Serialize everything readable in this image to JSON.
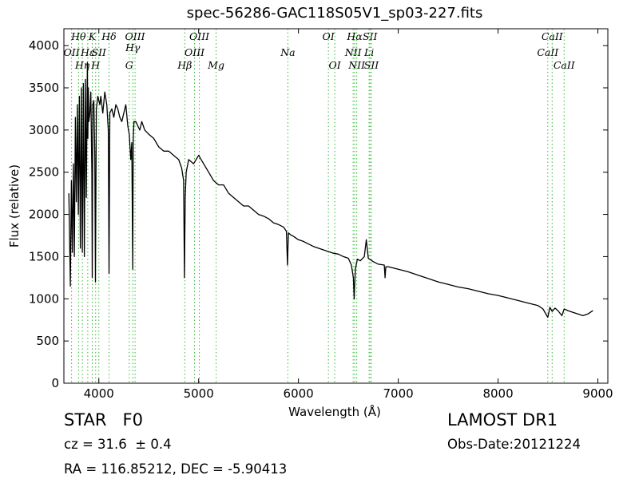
{
  "chart_data": {
    "type": "line",
    "title": "spec-56286-GAC118S05V1_sp03-227.fits",
    "xlabel": "Wavelength (Å)",
    "ylabel": "Flux (relative)",
    "xlim": [
      3650,
      9100
    ],
    "ylim": [
      0,
      4200
    ],
    "xticks": [
      4000,
      5000,
      6000,
      7000,
      8000,
      9000
    ],
    "yticks": [
      0,
      500,
      1000,
      1500,
      2000,
      2500,
      3000,
      3500,
      4000
    ],
    "grid": false,
    "series": [
      {
        "color": "#000000",
        "x": [
          3700,
          3715,
          3725,
          3735,
          3745,
          3755,
          3765,
          3775,
          3785,
          3795,
          3805,
          3815,
          3825,
          3835,
          3845,
          3855,
          3865,
          3875,
          3885,
          3890,
          3895,
          3900,
          3910,
          3920,
          3930,
          3934,
          3940,
          3950,
          3960,
          3966,
          3975,
          3990,
          4000,
          4010,
          4020,
          4040,
          4060,
          4080,
          4095,
          4102,
          4110,
          4130,
          4150,
          4170,
          4190,
          4210,
          4230,
          4250,
          4270,
          4290,
          4305,
          4320,
          4330,
          4340,
          4345,
          4352,
          4370,
          4390,
          4410,
          4430,
          4460,
          4500,
          4550,
          4600,
          4650,
          4700,
          4750,
          4800,
          4830,
          4850,
          4858,
          4861,
          4866,
          4875,
          4900,
          4950,
          5000,
          5050,
          5100,
          5150,
          5200,
          5250,
          5300,
          5350,
          5400,
          5450,
          5500,
          5550,
          5600,
          5650,
          5700,
          5750,
          5800,
          5850,
          5880,
          5890,
          5895,
          5900,
          5920,
          5950,
          6000,
          6050,
          6100,
          6150,
          6200,
          6250,
          6300,
          6350,
          6400,
          6450,
          6500,
          6530,
          6550,
          6558,
          6563,
          6570,
          6590,
          6620,
          6660,
          6680,
          6700,
          6750,
          6800,
          6860,
          6868,
          6875,
          6900,
          7000,
          7100,
          7200,
          7300,
          7400,
          7500,
          7600,
          7700,
          7800,
          7900,
          8000,
          8100,
          8200,
          8300,
          8400,
          8450,
          8498,
          8520,
          8542,
          8570,
          8600,
          8640,
          8662,
          8700,
          8750,
          8800,
          8850,
          8900,
          8950
        ],
        "y": [
          2250,
          1150,
          2400,
          1550,
          2600,
          1500,
          3150,
          2150,
          3300,
          2000,
          3400,
          1600,
          3500,
          1550,
          3550,
          1500,
          3600,
          2200,
          3800,
          2900,
          3500,
          3100,
          3200,
          3450,
          2500,
          1250,
          3300,
          3350,
          2700,
          1200,
          3250,
          3400,
          3350,
          3300,
          3400,
          3200,
          3450,
          3300,
          3000,
          1300,
          3200,
          3250,
          3150,
          3300,
          3250,
          3150,
          3100,
          3200,
          3300,
          3050,
          2950,
          2650,
          2850,
          1350,
          2900,
          3100,
          3100,
          3050,
          3000,
          3100,
          3000,
          2950,
          2900,
          2800,
          2750,
          2750,
          2700,
          2650,
          2550,
          2400,
          1250,
          1650,
          2200,
          2500,
          2650,
          2600,
          2700,
          2600,
          2500,
          2400,
          2350,
          2350,
          2250,
          2200,
          2150,
          2100,
          2100,
          2050,
          2000,
          1980,
          1950,
          1900,
          1880,
          1850,
          1800,
          1400,
          1600,
          1780,
          1760,
          1740,
          1700,
          1680,
          1650,
          1620,
          1600,
          1580,
          1560,
          1540,
          1530,
          1500,
          1480,
          1400,
          1250,
          1000,
          1150,
          1350,
          1470,
          1450,
          1500,
          1700,
          1480,
          1440,
          1410,
          1400,
          1250,
          1380,
          1380,
          1350,
          1320,
          1280,
          1240,
          1200,
          1170,
          1140,
          1120,
          1090,
          1060,
          1040,
          1010,
          980,
          950,
          920,
          880,
          780,
          900,
          850,
          890,
          860,
          800,
          880,
          860,
          840,
          820,
          800,
          820,
          860
        ]
      }
    ],
    "spectral_lines": [
      {
        "name": "OII",
        "x": 3727,
        "row": 2
      },
      {
        "name": "Hθ",
        "x": 3797,
        "row": 0
      },
      {
        "name": "Hη",
        "x": 3835,
        "row": 3
      },
      {
        "name": "Hε",
        "x": 3889,
        "row": 2
      },
      {
        "name": "K",
        "x": 3934,
        "row": 0
      },
      {
        "name": "H",
        "x": 3968,
        "row": 3
      },
      {
        "name": "SII",
        "x": 4000,
        "row": 2
      },
      {
        "name": "Hδ",
        "x": 4102,
        "row": 0
      },
      {
        "name": "G",
        "x": 4304,
        "row": 3
      },
      {
        "name": "Hγ",
        "x": 4340,
        "row": 1
      },
      {
        "name": "OIII",
        "x": 4363,
        "row": 0
      },
      {
        "name": "Hβ",
        "x": 4861,
        "row": 3
      },
      {
        "name": "OIII",
        "x": 4959,
        "row": 2
      },
      {
        "name": "OIII",
        "x": 5007,
        "row": 0
      },
      {
        "name": "Mg",
        "x": 5175,
        "row": 3
      },
      {
        "name": "Na",
        "x": 5894,
        "row": 2
      },
      {
        "name": "OI",
        "x": 6300,
        "row": 0
      },
      {
        "name": "OI",
        "x": 6364,
        "row": 3
      },
      {
        "name": "NII",
        "x": 6548,
        "row": 2
      },
      {
        "name": "Hα",
        "x": 6563,
        "row": 0
      },
      {
        "name": "NII",
        "x": 6584,
        "row": 3
      },
      {
        "name": "Li",
        "x": 6708,
        "row": 2
      },
      {
        "name": "SII",
        "x": 6717,
        "row": 0
      },
      {
        "name": "SII",
        "x": 6731,
        "row": 3
      },
      {
        "name": "CaII",
        "x": 8498,
        "row": 2
      },
      {
        "name": "CaII",
        "x": 8542,
        "row": 0
      },
      {
        "name": "CaII",
        "x": 8662,
        "row": 3
      }
    ],
    "line_color": "#33bb33"
  },
  "info": {
    "class_label": "STAR",
    "subclass_label": "F0",
    "redshift_label": "cz = 31.6  ± 0.4",
    "coords_label": "RA = 116.85212, DEC = -5.90413",
    "survey_label": "LAMOST DR1",
    "obs_date_label": "Obs-Date:20121224"
  }
}
